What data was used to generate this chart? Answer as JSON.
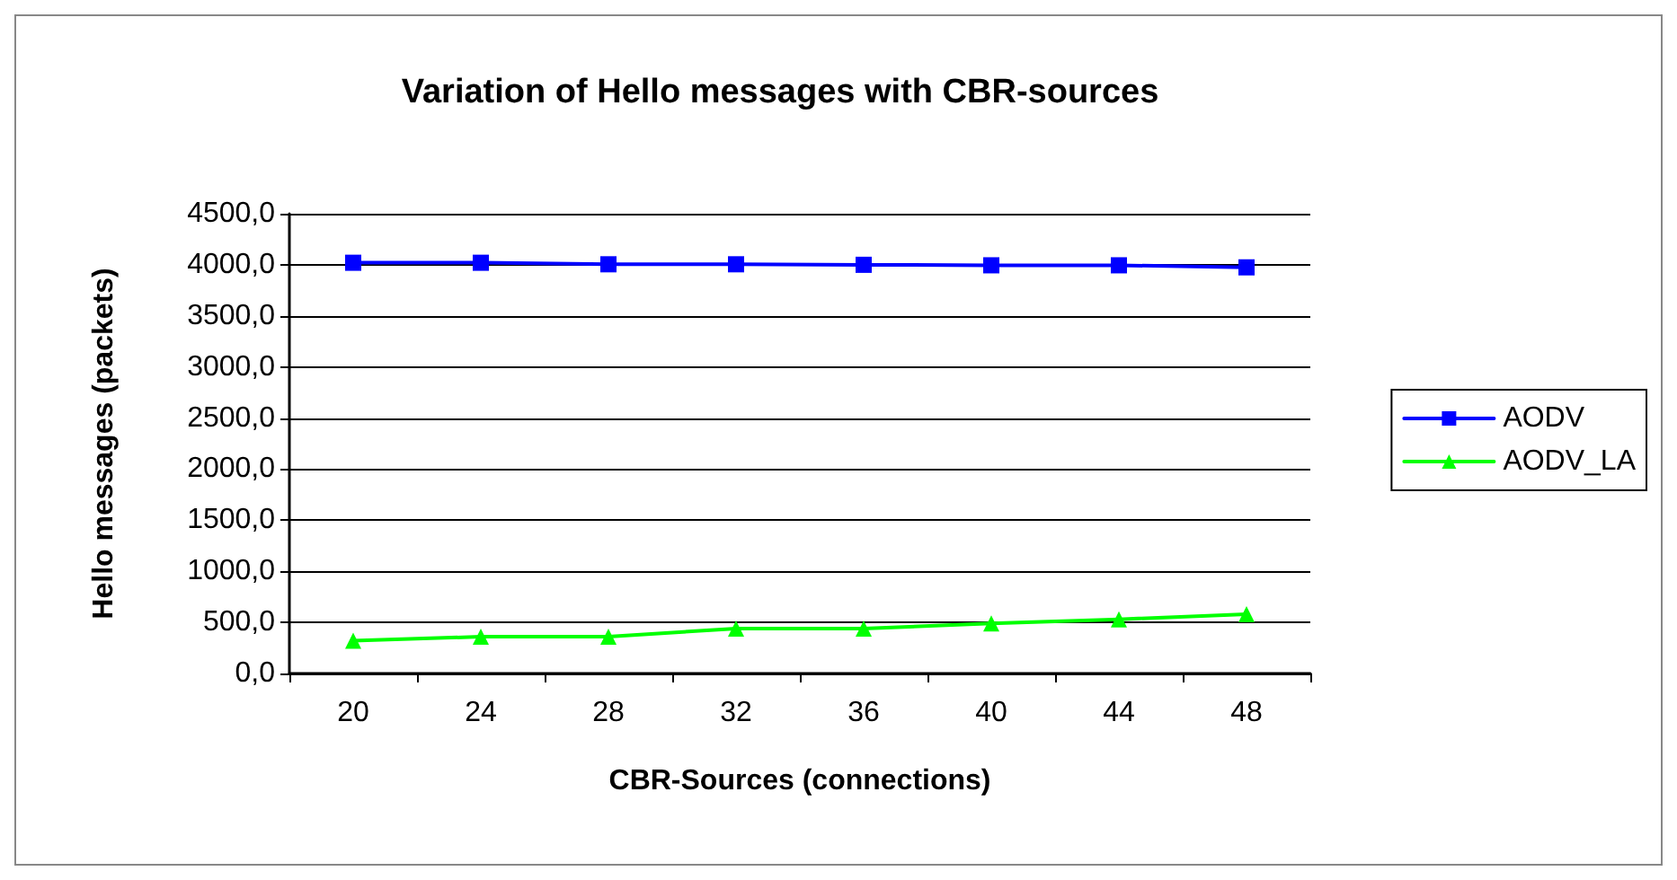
{
  "chart_data": {
    "type": "line",
    "title": "Variation of Hello messages with CBR-sources",
    "xlabel": "CBR-Sources (connections)",
    "ylabel": "Hello messages (packets)",
    "categories": [
      "20",
      "24",
      "28",
      "32",
      "36",
      "40",
      "44",
      "48"
    ],
    "series": [
      {
        "name": "AODV",
        "color": "#0000ff",
        "marker": "square",
        "values": [
          4020,
          4020,
          4005,
          4005,
          4000,
          3995,
          3995,
          3975
        ]
      },
      {
        "name": "AODV_LA",
        "color": "#00ff00",
        "marker": "triangle",
        "values": [
          320,
          360,
          360,
          440,
          440,
          490,
          530,
          580
        ]
      }
    ],
    "ylim": [
      0,
      4500
    ],
    "yticks": [
      {
        "value": 0,
        "label": "0,0"
      },
      {
        "value": 500,
        "label": "500,0"
      },
      {
        "value": 1000,
        "label": "1000,0"
      },
      {
        "value": 1500,
        "label": "1500,0"
      },
      {
        "value": 2000,
        "label": "2000,0"
      },
      {
        "value": 2500,
        "label": "2500,0"
      },
      {
        "value": 3000,
        "label": "3000,0"
      },
      {
        "value": 3500,
        "label": "3500,0"
      },
      {
        "value": 4000,
        "label": "4000,0"
      },
      {
        "value": 4500,
        "label": "4500,0"
      }
    ],
    "grid": "y",
    "legend": "right"
  }
}
